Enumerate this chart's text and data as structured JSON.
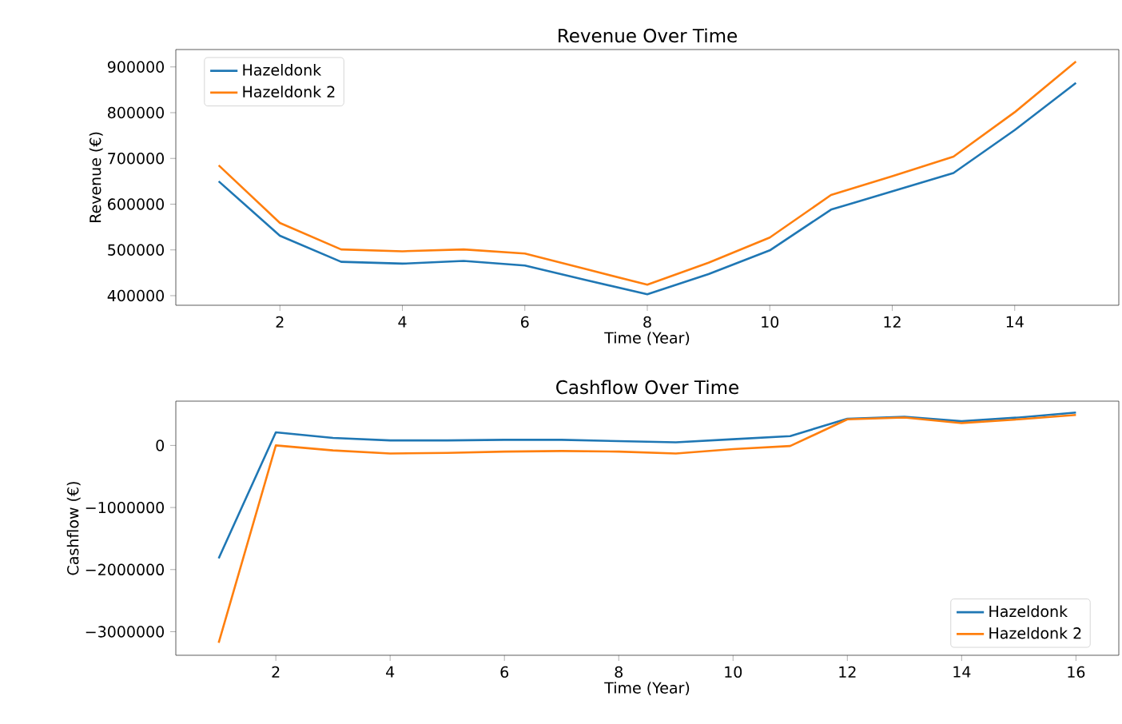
{
  "chart_data": [
    {
      "type": "line",
      "title": "Revenue Over Time",
      "xlabel": "Time (Year)",
      "ylabel": "Revenue (€)",
      "x": [
        1,
        2,
        3,
        4,
        5,
        6,
        7,
        8,
        9,
        10,
        11,
        12,
        13,
        14,
        15
      ],
      "series": [
        {
          "name": "Hazeldonk",
          "color": "#1f77b4",
          "values": [
            650000,
            531000,
            474000,
            470000,
            476000,
            466000,
            434000,
            403000,
            447000,
            499000,
            588000,
            628000,
            668000,
            762000,
            865000
          ]
        },
        {
          "name": "Hazeldonk 2",
          "color": "#ff7f0e",
          "values": [
            685000,
            559000,
            501000,
            497000,
            501000,
            492000,
            458000,
            424000,
            472000,
            527000,
            620000,
            661000,
            704000,
            801000,
            912000
          ]
        }
      ],
      "xlim": [
        0.3,
        15.7
      ],
      "ylim": [
        379000,
        938000
      ],
      "xticks": [
        2,
        4,
        6,
        8,
        10,
        12,
        14
      ],
      "yticks": [
        400000,
        500000,
        600000,
        700000,
        800000,
        900000
      ],
      "legend": "top left"
    },
    {
      "type": "line",
      "title": "Cashflow Over Time",
      "xlabel": "Time (Year)",
      "ylabel": "Cashflow (€)",
      "x": [
        1,
        2,
        3,
        4,
        5,
        6,
        7,
        8,
        9,
        10,
        11,
        12,
        13,
        14,
        15,
        16
      ],
      "series": [
        {
          "name": "Hazeldonk",
          "color": "#1f77b4",
          "values": [
            -1820000,
            210000,
            120000,
            80000,
            80000,
            90000,
            90000,
            70000,
            50000,
            100000,
            150000,
            430000,
            460000,
            390000,
            450000,
            530000
          ]
        },
        {
          "name": "Hazeldonk 2",
          "color": "#ff7f0e",
          "values": [
            -3180000,
            0,
            -80000,
            -130000,
            -120000,
            -100000,
            -90000,
            -100000,
            -130000,
            -60000,
            -10000,
            420000,
            450000,
            360000,
            420000,
            490000
          ]
        }
      ],
      "xlim": [
        0.25,
        16.75
      ],
      "ylim": [
        -3380000,
        713000
      ],
      "xticks": [
        2,
        4,
        6,
        8,
        10,
        12,
        14,
        16
      ],
      "yticks": [
        {
          "value": -3000000,
          "label": "−3000000"
        },
        {
          "value": -2000000,
          "label": "−2000000"
        },
        {
          "value": -1000000,
          "label": "−1000000"
        },
        0
      ],
      "legend": "bottom right"
    }
  ]
}
